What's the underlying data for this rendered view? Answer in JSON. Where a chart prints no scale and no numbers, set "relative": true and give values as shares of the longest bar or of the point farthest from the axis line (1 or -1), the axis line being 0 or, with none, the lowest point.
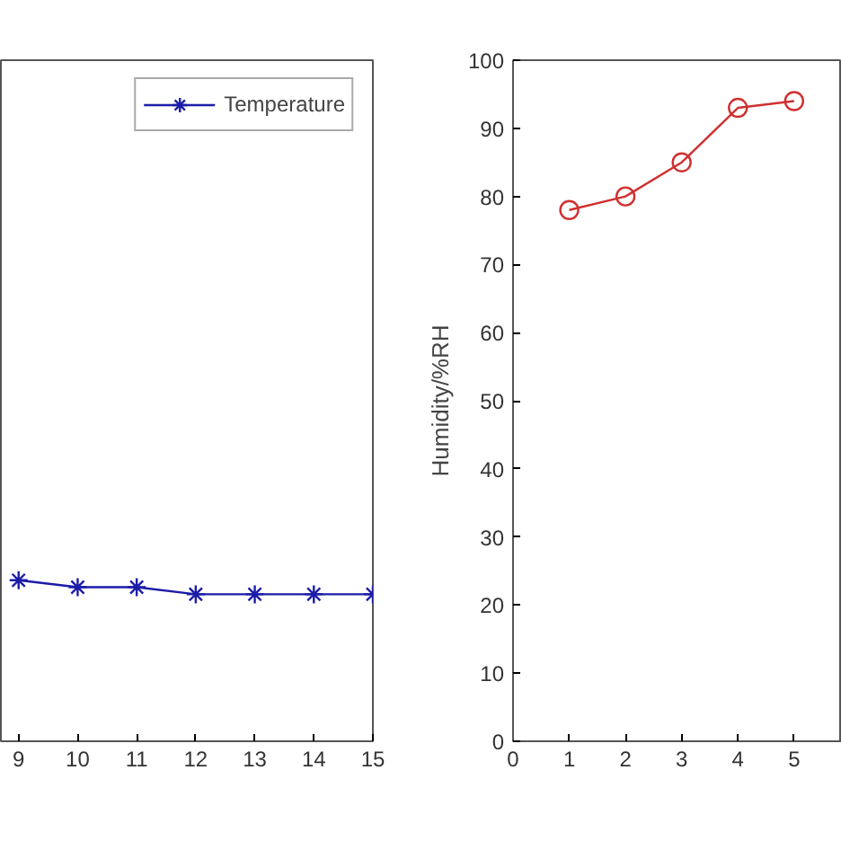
{
  "chart_data": [
    {
      "type": "line",
      "relative": true,
      "x": [
        9,
        10,
        11,
        12,
        13,
        14,
        15
      ],
      "xlim": [
        8.7,
        15
      ],
      "xticks": [
        9,
        10,
        11,
        12,
        13,
        14,
        15
      ],
      "tick_labels": "x",
      "marker": "cross",
      "legend": "top right",
      "grid": false,
      "series": [
        {
          "name": "Temperature",
          "color": "#1c1ca8",
          "values": [
            1,
            0.957,
            0.957,
            0.913,
            0.913,
            0.913,
            0.913
          ]
        }
      ]
    },
    {
      "type": "line",
      "x": [
        1,
        2,
        3,
        4,
        5
      ],
      "xlim": [
        0,
        5.85
      ],
      "xticks": [
        0,
        1,
        2,
        3,
        4,
        5
      ],
      "ylim": [
        0,
        100
      ],
      "yticks": [
        0,
        10,
        20,
        30,
        40,
        50,
        60,
        70,
        80,
        90,
        100
      ],
      "ylabel": "Humidity/%RH",
      "marker": "circle",
      "grid": false,
      "series": [
        {
          "color": "#d03030",
          "values": [
            78,
            80,
            85,
            93,
            94
          ]
        }
      ]
    }
  ]
}
